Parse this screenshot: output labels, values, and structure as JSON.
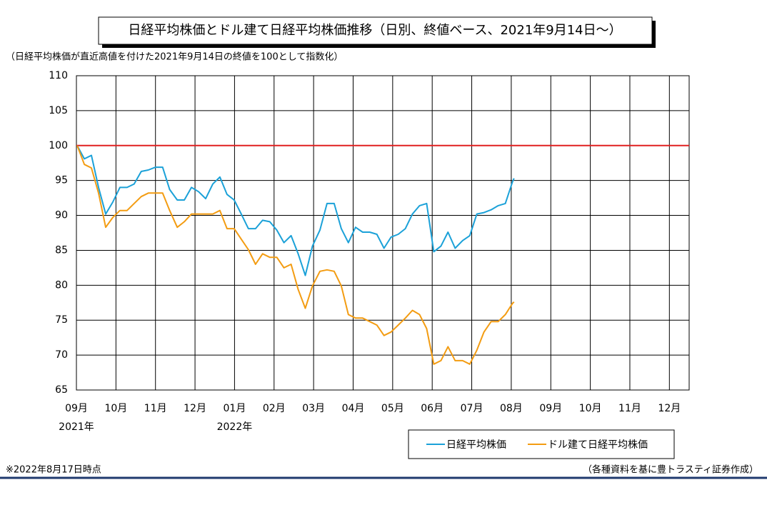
{
  "chart_data": {
    "type": "line",
    "title": "日経平均株価とドル建て日経平均株価推移（日別、終値ベース、2021年9月14日～）",
    "subtitle": "（日経平均株価が直近高値を付けた2021年9月14日の終値を100として指数化）",
    "note_left": "※2022年8月17日時点",
    "note_right": "（各種資料を基に豊トラスティ証券作成）",
    "x": [
      0.02,
      0.2,
      0.38,
      0.56,
      0.74,
      0.92,
      1.1,
      1.28,
      1.46,
      1.64,
      1.82,
      2.0,
      2.18,
      2.36,
      2.55,
      2.73,
      2.91,
      3.09,
      3.27,
      3.45,
      3.63,
      3.81,
      3.99,
      4.17,
      4.35,
      4.53,
      4.71,
      4.89,
      5.07,
      5.25,
      5.43,
      5.61,
      5.79,
      5.97,
      6.16,
      6.34,
      6.52,
      6.7,
      6.88,
      7.06,
      7.24,
      7.42,
      7.6,
      7.78,
      7.96,
      8.14,
      8.32,
      8.5,
      8.68,
      8.86,
      9.04,
      9.22,
      9.4,
      9.58,
      9.77,
      9.95,
      10.13,
      10.31,
      10.49,
      10.67,
      10.85,
      11.03,
      11.07
    ],
    "series": [
      {
        "name": "日経平均株価",
        "color": "#1ba1d8",
        "values": [
          100.0,
          98.1,
          98.6,
          94.0,
          90.2,
          91.9,
          94.0,
          94.0,
          94.5,
          96.3,
          96.5,
          96.9,
          96.9,
          93.7,
          92.2,
          92.2,
          94.0,
          93.4,
          92.4,
          94.5,
          95.5,
          93.0,
          92.2,
          90.2,
          88.1,
          88.1,
          89.3,
          89.1,
          87.9,
          86.1,
          87.1,
          84.5,
          81.4,
          85.6,
          87.9,
          91.7,
          91.7,
          88.1,
          86.1,
          88.3,
          87.6,
          87.6,
          87.3,
          85.3,
          86.9,
          87.3,
          88.1,
          90.2,
          91.4,
          91.7,
          84.8,
          85.6,
          87.6,
          85.3,
          86.4,
          87.1,
          90.2,
          90.4,
          90.8,
          91.4,
          91.7,
          94.8,
          95.3
        ]
      },
      {
        "name": "ドル建て日経平均株価",
        "color": "#f39c12",
        "values": [
          100.0,
          97.3,
          96.8,
          93.2,
          88.3,
          89.7,
          90.7,
          90.7,
          91.7,
          92.7,
          93.2,
          93.2,
          93.2,
          90.7,
          88.3,
          89.1,
          90.2,
          90.2,
          90.2,
          90.2,
          90.7,
          88.1,
          88.1,
          86.6,
          85.1,
          83.0,
          84.5,
          84.0,
          84.0,
          82.5,
          83.0,
          79.4,
          76.7,
          79.9,
          82.0,
          82.2,
          82.0,
          79.9,
          75.8,
          75.3,
          75.3,
          74.8,
          74.3,
          72.8,
          73.3,
          74.3,
          75.3,
          76.4,
          75.8,
          73.8,
          68.7,
          69.2,
          71.2,
          69.2,
          69.2,
          68.7,
          70.7,
          73.3,
          74.8,
          74.8,
          75.8,
          77.4,
          77.6
        ]
      }
    ],
    "reference_line": {
      "value": 100,
      "color": "#e02020"
    },
    "xlim": [
      0,
      15.5
    ],
    "xticks": [
      {
        "value": 0,
        "label": "09月"
      },
      {
        "value": 1,
        "label": "10月"
      },
      {
        "value": 2,
        "label": "11月"
      },
      {
        "value": 3,
        "label": "12月"
      },
      {
        "value": 4,
        "label": "01月"
      },
      {
        "value": 5,
        "label": "02月"
      },
      {
        "value": 6,
        "label": "03月"
      },
      {
        "value": 7,
        "label": "04月"
      },
      {
        "value": 8,
        "label": "05月"
      },
      {
        "value": 9,
        "label": "06月"
      },
      {
        "value": 10,
        "label": "07月"
      },
      {
        "value": 11,
        "label": "08月"
      },
      {
        "value": 12,
        "label": "09月"
      },
      {
        "value": 13,
        "label": "10月"
      },
      {
        "value": 14,
        "label": "11月"
      },
      {
        "value": 15,
        "label": "12月"
      }
    ],
    "year_labels": [
      {
        "value": 0,
        "label": "2021年"
      },
      {
        "value": 4,
        "label": "2022年"
      }
    ],
    "ylim": [
      65,
      110
    ],
    "yticks": [
      65,
      70,
      75,
      80,
      85,
      90,
      95,
      100,
      105,
      110
    ],
    "grid": true,
    "legend": "bottom"
  }
}
